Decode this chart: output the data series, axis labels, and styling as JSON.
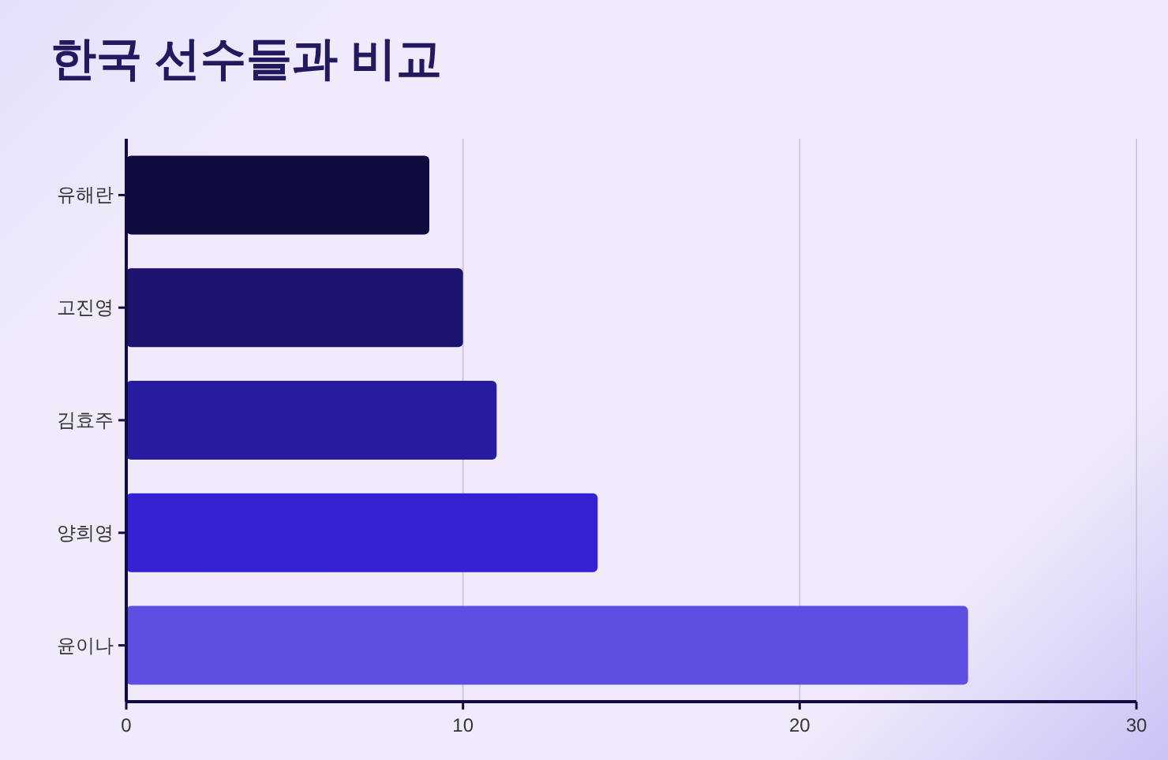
{
  "chart_data": {
    "type": "bar",
    "title": "한국 선수들과 비교",
    "orientation": "horizontal",
    "categories": [
      "유해란",
      "고진영",
      "김효주",
      "양희영",
      "윤이나"
    ],
    "values": [
      9,
      10,
      11,
      14,
      25
    ],
    "colors": [
      "#110c3f",
      "#1c136e",
      "#271b9f",
      "#3522d4",
      "#5e4ee2"
    ],
    "xlim": [
      0,
      30
    ],
    "xticks": [
      0,
      10,
      20,
      30
    ],
    "grid": "x"
  }
}
